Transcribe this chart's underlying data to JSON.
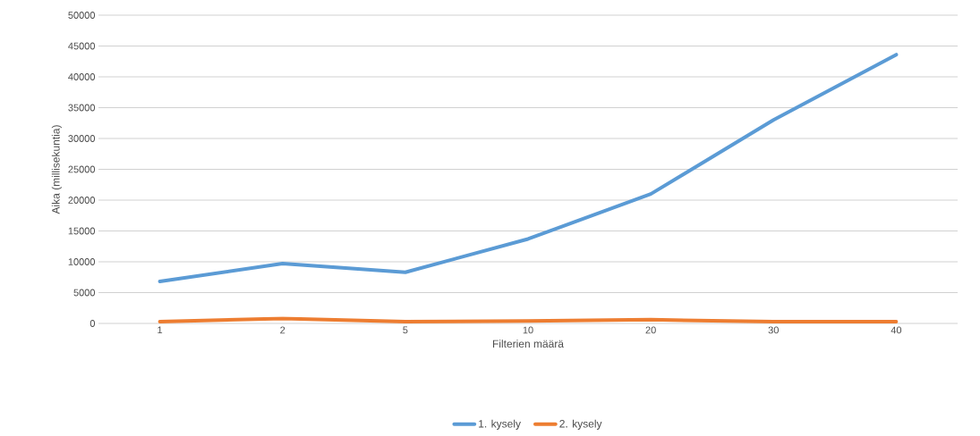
{
  "chart_data": {
    "type": "line",
    "xlabel": "Filterien määrä",
    "ylabel": "Aika (millisekuntia)",
    "categories": [
      "1",
      "2",
      "5",
      "10",
      "20",
      "30",
      "40"
    ],
    "series": [
      {
        "name": "1. kysely",
        "color": "#5b9bd5",
        "values": [
          6800,
          9700,
          8300,
          13700,
          21000,
          33000,
          43600
        ]
      },
      {
        "name": "2. kysely",
        "color": "#ed7d31",
        "values": [
          300,
          800,
          300,
          400,
          600,
          300,
          300
        ]
      }
    ],
    "ylim": [
      0,
      50000
    ],
    "yticks": [
      0,
      5000,
      10000,
      15000,
      20000,
      25000,
      30000,
      35000,
      40000,
      45000,
      50000
    ],
    "grid": "y",
    "legend": "bottom",
    "marker": "none",
    "line_style": "solid"
  }
}
